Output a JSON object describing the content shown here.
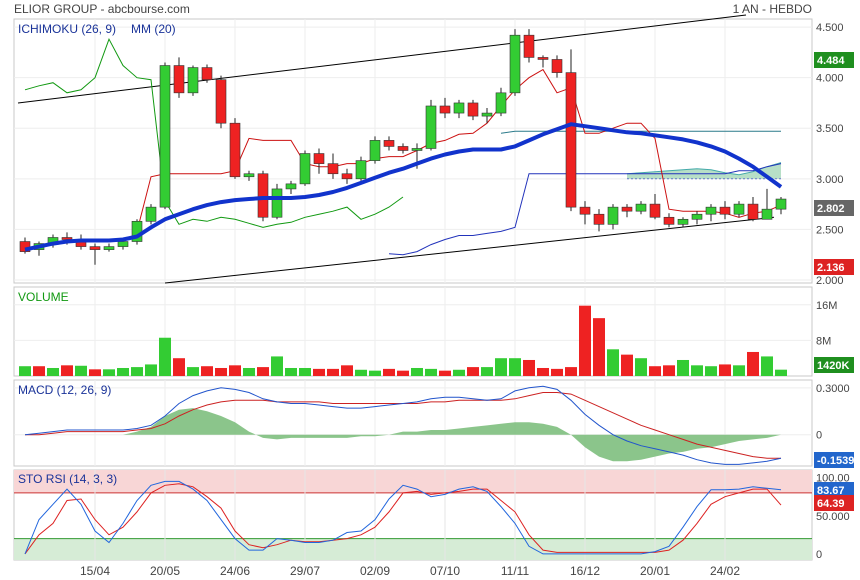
{
  "header": {
    "left": "ELIOR GROUP - abcbourse.com",
    "right": "1 AN - HEBDO"
  },
  "colors": {
    "up": "#33cc33",
    "down": "#ee2222",
    "ma": "#1133cc",
    "tenkan": "#cc1111",
    "kijun": "#2233bb",
    "chikou": "#119911",
    "cloud": "#9fd4b4",
    "macd": "#2255cc",
    "macd_signal": "#cc2222",
    "macd_hist": "#77bb77",
    "sto": "#2266dd",
    "sto_signal": "#dd2222",
    "sto_high_zone": "#f8d6d6",
    "sto_low_zone": "#d6ecd6"
  },
  "chart_data": [
    {
      "type": "candlestick",
      "title": "ICHIMOKU (26, 9)",
      "ma_label": "MM (20)",
      "x_ticks": [
        "15/04",
        "20/05",
        "24/06",
        "29/07",
        "02/09",
        "07/10",
        "11/11",
        "16/12",
        "20/01",
        "24/02"
      ],
      "x_tick_index": [
        5,
        10,
        15,
        20,
        25,
        30,
        35,
        40,
        45,
        50
      ],
      "y_ticks": [
        2.0,
        2.5,
        3.0,
        3.5,
        4.0,
        4.5
      ],
      "y_tick_labels": [
        "2.000",
        "2.500",
        "3.000",
        "3.500",
        "4.000",
        "4.500"
      ],
      "ylim": [
        1.97,
        4.58
      ],
      "badges": {
        "high": "4.484",
        "last": "2.802",
        "low": "2.136"
      },
      "candles": [
        [
          2.38,
          2.28,
          2.42,
          2.26
        ],
        [
          2.3,
          2.36,
          2.38,
          2.24
        ],
        [
          2.35,
          2.42,
          2.45,
          2.32
        ],
        [
          2.42,
          2.4,
          2.47,
          2.35
        ],
        [
          2.4,
          2.33,
          2.45,
          2.3
        ],
        [
          2.33,
          2.3,
          2.36,
          2.15
        ],
        [
          2.3,
          2.33,
          2.36,
          2.28
        ],
        [
          2.33,
          2.38,
          2.4,
          2.3
        ],
        [
          2.38,
          2.58,
          2.6,
          2.35
        ],
        [
          2.58,
          2.72,
          2.75,
          2.55
        ],
        [
          2.72,
          4.12,
          4.15,
          2.7
        ],
        [
          4.12,
          3.85,
          4.2,
          3.8
        ],
        [
          3.85,
          4.1,
          4.12,
          3.82
        ],
        [
          4.1,
          3.98,
          4.13,
          3.95
        ],
        [
          3.98,
          3.55,
          4.02,
          3.5
        ],
        [
          3.55,
          3.02,
          3.6,
          3.0
        ],
        [
          3.02,
          3.05,
          3.08,
          2.98
        ],
        [
          3.05,
          2.62,
          3.08,
          2.58
        ],
        [
          2.62,
          2.9,
          2.95,
          2.6
        ],
        [
          2.9,
          2.95,
          2.98,
          2.85
        ],
        [
          2.95,
          3.25,
          3.28,
          2.93
        ],
        [
          3.25,
          3.15,
          3.3,
          3.05
        ],
        [
          3.15,
          3.05,
          3.25,
          3.0
        ],
        [
          3.05,
          3.0,
          3.1,
          2.95
        ],
        [
          3.0,
          3.18,
          3.22,
          2.98
        ],
        [
          3.18,
          3.38,
          3.42,
          3.15
        ],
        [
          3.38,
          3.32,
          3.42,
          3.28
        ],
        [
          3.32,
          3.28,
          3.35,
          3.25
        ],
        [
          3.28,
          3.3,
          3.35,
          3.1
        ],
        [
          3.3,
          3.72,
          3.78,
          3.28
        ],
        [
          3.72,
          3.65,
          3.8,
          3.6
        ],
        [
          3.65,
          3.75,
          3.78,
          3.6
        ],
        [
          3.75,
          3.62,
          3.78,
          3.58
        ],
        [
          3.62,
          3.65,
          3.7,
          3.55
        ],
        [
          3.65,
          3.85,
          3.9,
          3.62
        ],
        [
          3.85,
          4.42,
          4.48,
          3.82
        ],
        [
          4.42,
          4.2,
          4.48,
          4.15
        ],
        [
          4.2,
          4.18,
          4.22,
          4.1
        ],
        [
          4.18,
          4.05,
          4.22,
          4.0
        ],
        [
          4.05,
          2.72,
          4.28,
          2.68
        ],
        [
          2.72,
          2.65,
          2.78,
          2.55
        ],
        [
          2.65,
          2.55,
          2.7,
          2.48
        ],
        [
          2.55,
          2.72,
          2.75,
          2.5
        ],
        [
          2.72,
          2.68,
          2.75,
          2.62
        ],
        [
          2.68,
          2.75,
          2.78,
          2.65
        ],
        [
          2.75,
          2.62,
          2.85,
          2.6
        ],
        [
          2.62,
          2.55,
          2.66,
          2.52
        ],
        [
          2.55,
          2.6,
          2.62,
          2.52
        ],
        [
          2.6,
          2.65,
          2.68,
          2.55
        ],
        [
          2.65,
          2.72,
          2.75,
          2.58
        ],
        [
          2.72,
          2.65,
          2.78,
          2.6
        ],
        [
          2.65,
          2.75,
          2.78,
          2.62
        ],
        [
          2.75,
          2.6,
          2.82,
          2.58
        ],
        [
          2.6,
          2.7,
          2.9,
          2.6
        ],
        [
          2.7,
          2.8,
          2.82,
          2.65
        ]
      ],
      "ma20": [
        2.3,
        2.33,
        2.36,
        2.38,
        2.39,
        2.39,
        2.39,
        2.4,
        2.43,
        2.52,
        2.6,
        2.65,
        2.7,
        2.74,
        2.77,
        2.79,
        2.8,
        2.81,
        2.81,
        2.81,
        2.82,
        2.84,
        2.87,
        2.91,
        2.96,
        3.01,
        3.06,
        3.1,
        3.15,
        3.2,
        3.24,
        3.27,
        3.29,
        3.29,
        3.29,
        3.32,
        3.38,
        3.44,
        3.49,
        3.54,
        3.52,
        3.5,
        3.48,
        3.46,
        3.45,
        3.43,
        3.41,
        3.39,
        3.36,
        3.32,
        3.27,
        3.2,
        3.12,
        3.02,
        2.92
      ],
      "tenkan": [
        null,
        null,
        null,
        null,
        null,
        null,
        null,
        null,
        2.48,
        3.02,
        3.05,
        3.05,
        3.05,
        3.05,
        3.05,
        3.08,
        3.4,
        3.38,
        3.38,
        3.38,
        3.15,
        3.12,
        3.12,
        3.15,
        3.15,
        3.2,
        3.22,
        3.22,
        3.28,
        3.35,
        3.38,
        3.44,
        3.45,
        3.55,
        3.72,
        3.88,
        4.0,
        4.08,
        3.85,
        3.9,
        3.45,
        3.45,
        3.5,
        3.55,
        3.55,
        3.4,
        2.7,
        2.68,
        2.68,
        2.68,
        2.66,
        2.62,
        2.66,
        2.68,
        2.74
      ],
      "kijun": [
        null,
        null,
        null,
        null,
        null,
        null,
        null,
        null,
        null,
        null,
        null,
        null,
        null,
        null,
        null,
        null,
        null,
        null,
        null,
        null,
        null,
        null,
        null,
        null,
        null,
        null,
        2.26,
        2.25,
        2.28,
        2.35,
        2.4,
        2.44,
        2.44,
        2.46,
        2.48,
        2.52,
        3.05,
        3.05,
        3.05,
        3.05,
        3.05,
        3.05,
        3.05,
        3.05,
        3.05,
        3.05,
        3.05,
        3.05,
        3.05,
        3.05,
        3.05,
        3.08,
        3.08,
        3.12,
        3.15
      ],
      "chikou": [
        3.88,
        3.92,
        3.95,
        3.85,
        3.88,
        4.0,
        4.38,
        4.12,
        4.0,
        3.98,
        2.78,
        2.55,
        2.6,
        2.58,
        2.62,
        2.6,
        2.56,
        2.52,
        2.55,
        2.57,
        2.62,
        2.65,
        2.68,
        2.72,
        2.6,
        2.65,
        2.72,
        2.82
      ],
      "cloud_a": [
        null,
        null,
        null,
        null,
        null,
        null,
        null,
        null,
        null,
        null,
        null,
        null,
        null,
        null,
        null,
        null,
        null,
        null,
        null,
        null,
        null,
        null,
        null,
        null,
        null,
        null,
        null,
        null,
        null,
        null,
        null,
        null,
        null,
        null,
        null,
        null,
        null,
        null,
        null,
        null,
        null,
        null,
        null,
        3.05,
        3.06,
        3.07,
        3.08,
        3.09,
        3.1,
        3.09,
        3.06,
        3.04,
        3.07,
        3.12,
        3.16
      ],
      "cloud_b": [
        null,
        null,
        null,
        null,
        null,
        null,
        null,
        null,
        null,
        null,
        null,
        null,
        null,
        null,
        null,
        null,
        null,
        null,
        null,
        null,
        null,
        null,
        null,
        null,
        null,
        null,
        null,
        null,
        null,
        null,
        null,
        null,
        null,
        null,
        null,
        null,
        null,
        null,
        null,
        null,
        null,
        null,
        null,
        3.0,
        3.0,
        3.0,
        3.0,
        3.0,
        3.0,
        3.0,
        3.0,
        3.0,
        3.0,
        3.0,
        3.0
      ],
      "ssb_line": [
        null,
        null,
        null,
        null,
        null,
        null,
        null,
        null,
        null,
        null,
        null,
        null,
        null,
        null,
        null,
        null,
        null,
        null,
        null,
        null,
        null,
        null,
        null,
        null,
        null,
        null,
        null,
        null,
        null,
        null,
        null,
        null,
        null,
        null,
        3.45,
        3.47,
        3.47,
        3.47,
        3.47,
        3.47,
        3.47,
        3.47,
        3.47,
        3.47,
        3.47,
        3.47,
        3.47,
        3.47,
        3.47,
        3.47,
        3.47,
        3.47,
        3.47,
        3.47,
        3.47
      ],
      "trendlines": [
        {
          "from": [
            -0.5,
            3.75
          ],
          "to": [
            51.5,
            4.62
          ]
        },
        {
          "from": [
            10,
            1.97
          ],
          "to": [
            53.5,
            2.62
          ]
        }
      ]
    },
    {
      "type": "bar",
      "title": "VOLUME",
      "y_ticks": [
        8,
        16
      ],
      "y_tick_labels": [
        "8M",
        "16M"
      ],
      "ylim": [
        0,
        20
      ],
      "badge": "1420K",
      "values": [
        2.2,
        2.2,
        1.8,
        2.4,
        2.3,
        1.5,
        1.5,
        1.8,
        2.0,
        2.6,
        8.6,
        4.0,
        2.0,
        2.2,
        1.8,
        2.4,
        1.8,
        2.0,
        4.4,
        1.8,
        1.8,
        1.6,
        1.6,
        2.4,
        1.4,
        1.2,
        1.6,
        1.2,
        1.8,
        1.6,
        1.2,
        1.4,
        2.0,
        2.0,
        4.0,
        4.0,
        3.6,
        1.8,
        1.6,
        2.0,
        15.8,
        13.0,
        6.0,
        4.8,
        4.0,
        2.2,
        2.4,
        3.6,
        2.4,
        2.2,
        2.6,
        2.4,
        5.4,
        4.4,
        1.42
      ],
      "up": [
        true,
        false,
        true,
        false,
        true,
        false,
        true,
        true,
        true,
        true,
        true,
        false,
        true,
        false,
        false,
        false,
        true,
        false,
        true,
        true,
        true,
        false,
        false,
        false,
        true,
        true,
        false,
        false,
        true,
        true,
        false,
        true,
        false,
        true,
        true,
        true,
        false,
        false,
        false,
        false,
        false,
        false,
        true,
        false,
        true,
        false,
        false,
        true,
        true,
        true,
        false,
        true,
        false,
        true,
        true
      ]
    },
    {
      "type": "line",
      "title": "MACD (12, 26, 9)",
      "y_ticks": [
        0,
        0.3
      ],
      "y_tick_labels": [
        "0",
        "0.3000"
      ],
      "ylim": [
        -0.2,
        0.35
      ],
      "badge": "-0.1539",
      "macd": [
        0.0,
        0.01,
        0.02,
        0.03,
        0.03,
        0.03,
        0.03,
        0.03,
        0.04,
        0.06,
        0.12,
        0.2,
        0.25,
        0.28,
        0.3,
        0.29,
        0.27,
        0.23,
        0.21,
        0.2,
        0.2,
        0.19,
        0.18,
        0.17,
        0.17,
        0.18,
        0.19,
        0.2,
        0.21,
        0.23,
        0.24,
        0.24,
        0.23,
        0.22,
        0.23,
        0.28,
        0.3,
        0.31,
        0.29,
        0.22,
        0.13,
        0.06,
        0.0,
        -0.04,
        -0.07,
        -0.09,
        -0.11,
        -0.13,
        -0.16,
        -0.18,
        -0.19,
        -0.19,
        -0.18,
        -0.17,
        -0.15
      ],
      "signal": [
        0.0,
        0.0,
        0.01,
        0.02,
        0.02,
        0.02,
        0.02,
        0.02,
        0.03,
        0.04,
        0.07,
        0.12,
        0.16,
        0.19,
        0.21,
        0.22,
        0.22,
        0.22,
        0.21,
        0.21,
        0.21,
        0.21,
        0.2,
        0.2,
        0.2,
        0.2,
        0.2,
        0.2,
        0.2,
        0.21,
        0.21,
        0.22,
        0.22,
        0.22,
        0.22,
        0.23,
        0.25,
        0.27,
        0.27,
        0.26,
        0.22,
        0.18,
        0.14,
        0.1,
        0.06,
        0.03,
        0.0,
        -0.03,
        -0.06,
        -0.08,
        -0.1,
        -0.12,
        -0.14,
        -0.15,
        -0.15
      ],
      "hist": [
        0.0,
        0.0,
        0.0,
        0.0,
        0.0,
        0.0,
        0.0,
        0.0,
        0.02,
        0.05,
        0.12,
        0.16,
        0.17,
        0.15,
        0.12,
        0.08,
        0.02,
        -0.02,
        -0.03,
        -0.02,
        -0.02,
        -0.02,
        -0.02,
        -0.02,
        -0.01,
        -0.01,
        0.0,
        0.02,
        0.02,
        0.03,
        0.03,
        0.04,
        0.05,
        0.06,
        0.07,
        0.08,
        0.08,
        0.07,
        0.05,
        0.0,
        -0.08,
        -0.14,
        -0.17,
        -0.17,
        -0.16,
        -0.14,
        -0.12,
        -0.11,
        -0.09,
        -0.08,
        -0.06,
        -0.04,
        -0.03,
        -0.02,
        0.0
      ]
    },
    {
      "type": "line",
      "title": "STO RSI (14, 3, 3)",
      "y_ticks": [
        0,
        50,
        100
      ],
      "y_tick_labels": [
        "0",
        "50.000",
        "100.00"
      ],
      "ylim": [
        -8,
        110
      ],
      "bands": [
        20,
        80
      ],
      "badges": {
        "k": "83.67",
        "d": "64.39"
      },
      "k": [
        0,
        45,
        65,
        85,
        65,
        30,
        15,
        40,
        70,
        90,
        95,
        95,
        85,
        70,
        45,
        20,
        5,
        5,
        20,
        18,
        15,
        15,
        18,
        28,
        30,
        45,
        72,
        90,
        85,
        75,
        78,
        85,
        88,
        82,
        62,
        40,
        10,
        0,
        0,
        0,
        0,
        0,
        0,
        0,
        0,
        3,
        10,
        35,
        62,
        84,
        84,
        85,
        88,
        86,
        84
      ],
      "d": [
        0,
        25,
        40,
        70,
        72,
        45,
        25,
        35,
        55,
        80,
        90,
        92,
        88,
        75,
        60,
        30,
        12,
        8,
        12,
        18,
        16,
        16,
        18,
        20,
        25,
        35,
        55,
        80,
        82,
        78,
        80,
        82,
        85,
        85,
        70,
        55,
        25,
        5,
        2,
        2,
        2,
        2,
        2,
        2,
        2,
        2,
        5,
        18,
        40,
        65,
        75,
        80,
        85,
        85,
        64
      ]
    }
  ]
}
